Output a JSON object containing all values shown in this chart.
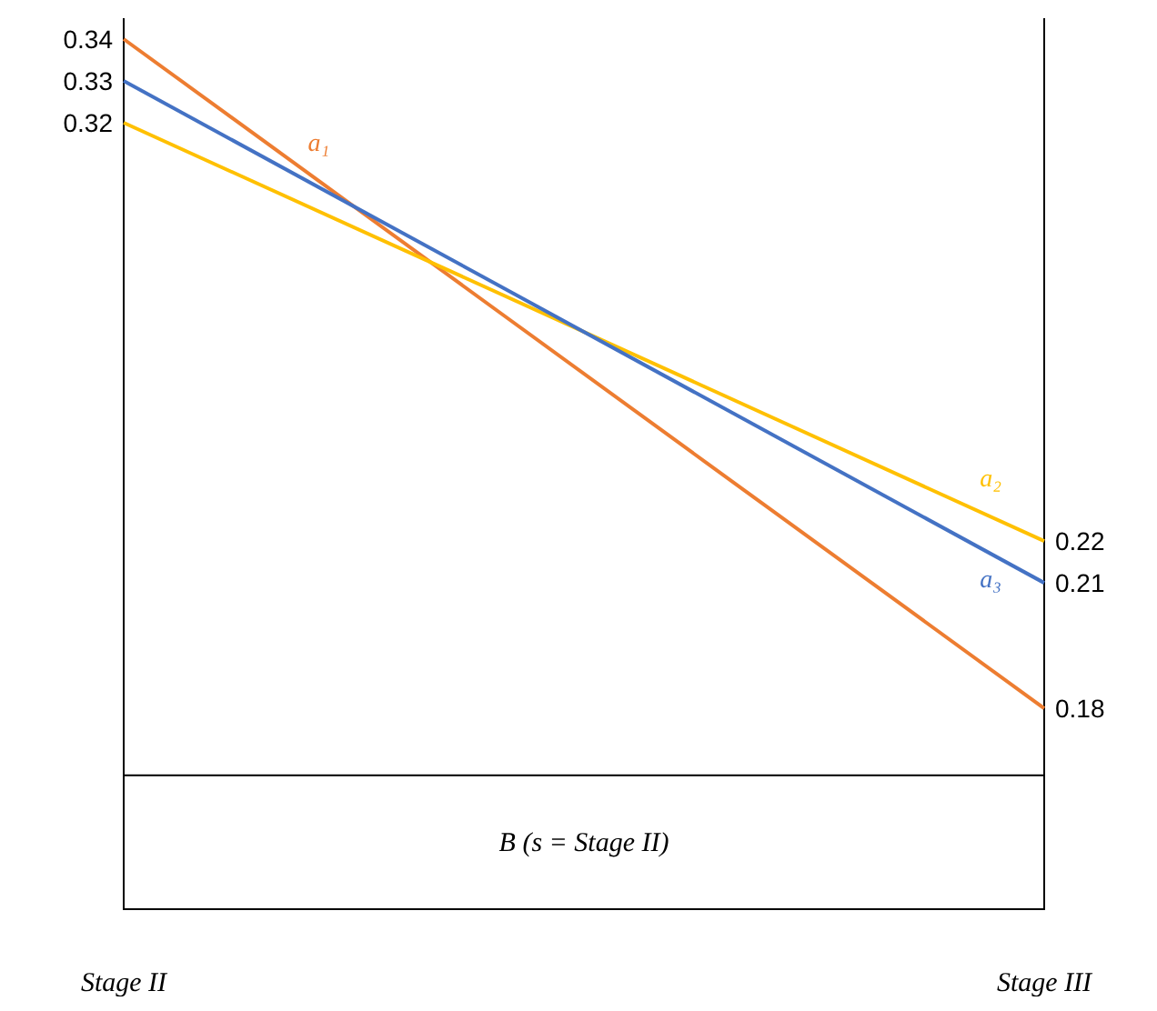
{
  "chart_data": {
    "type": "line",
    "categories": [
      "Stage II",
      "Stage III"
    ],
    "series": [
      {
        "name": "a₁",
        "color": "#ed7d31",
        "values": [
          0.34,
          0.18
        ]
      },
      {
        "name": "a₂",
        "color": "#ffc000",
        "values": [
          0.32,
          0.22
        ]
      },
      {
        "name": "a₃",
        "color": "#4472c4",
        "values": [
          0.33,
          0.21
        ]
      }
    ],
    "ylim": [
      0.132,
      0.345
    ],
    "tick_labels": "x",
    "data_labels": true,
    "marker": "none",
    "line_style": "solid",
    "bands": [
      {
        "axis": "y",
        "from": 0.132,
        "to": 0.164,
        "label": "B (s = Stage II)",
        "color": "#ffffff"
      }
    ]
  }
}
